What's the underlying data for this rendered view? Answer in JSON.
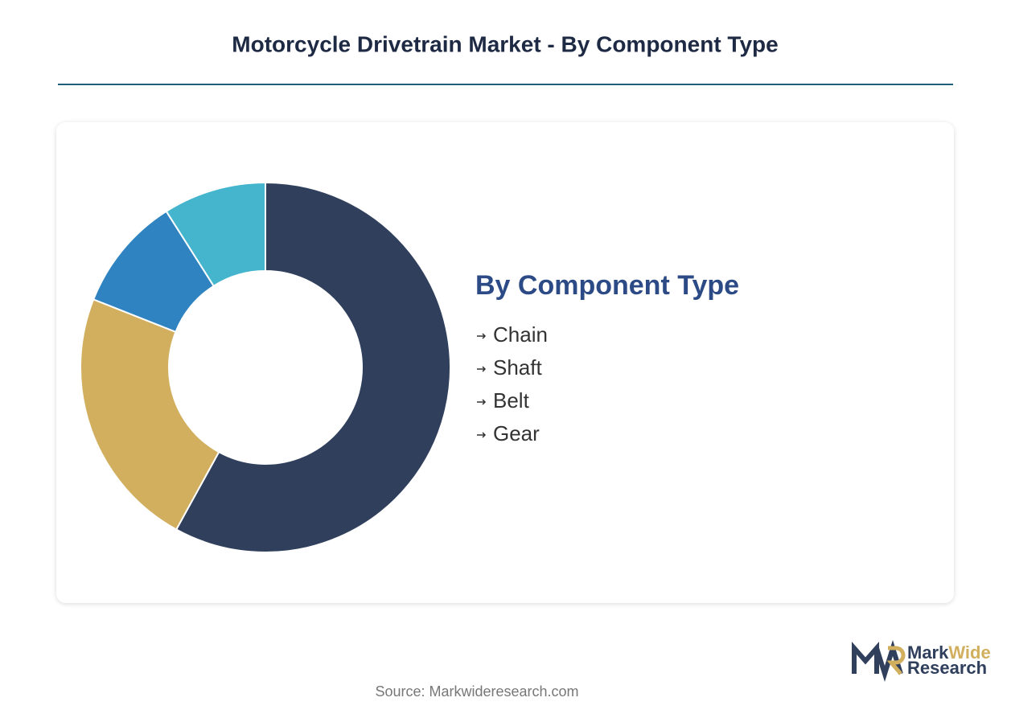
{
  "chart_data": {
    "type": "donut",
    "title": "Motorcycle Drivetrain Market - By Component Type",
    "legend_title": "By Component Type",
    "categories": [
      "Chain",
      "Shaft",
      "Belt",
      "Gear"
    ],
    "values": [
      58,
      23,
      10,
      9
    ],
    "colors": [
      "#2f3f5c",
      "#d1af5e",
      "#2f83c0",
      "#45b5ce"
    ]
  },
  "source": "Source: Markwideresearch.com",
  "logo": {
    "mark": "Mark",
    "wide": "Wide",
    "research": "Research"
  }
}
